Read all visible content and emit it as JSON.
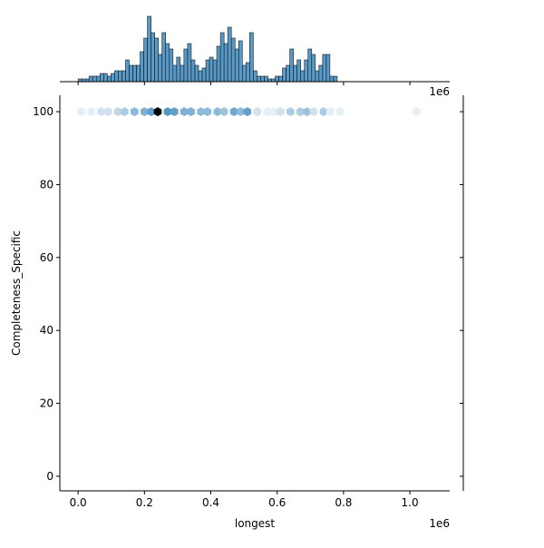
{
  "chart_data": {
    "type": "hexbin",
    "title": "",
    "xlabel": "longest",
    "ylabel": "Completeness_Specific",
    "x_offset_text": "1e6",
    "y_offset_text": "1e6",
    "xlim": [
      -0.055,
      1.12
    ],
    "ylim": [
      -4,
      104.5
    ],
    "x_ticks": [
      0.0,
      0.2,
      0.4,
      0.6,
      0.8,
      1.0
    ],
    "x_tick_labels": [
      "0.0",
      "0.2",
      "0.4",
      "0.6",
      "0.8",
      "1.0"
    ],
    "y_ticks": [
      0,
      20,
      40,
      60,
      80,
      100
    ],
    "y_tick_labels": [
      "0",
      "20",
      "40",
      "60",
      "80",
      "100"
    ],
    "grid": false,
    "hex_color": "#1f77b4",
    "hexbins": {
      "y": 100,
      "x": [
        0.01,
        0.04,
        0.07,
        0.09,
        0.12,
        0.14,
        0.17,
        0.2,
        0.22,
        0.24,
        0.27,
        0.29,
        0.32,
        0.34,
        0.37,
        0.39,
        0.42,
        0.44,
        0.47,
        0.49,
        0.51,
        0.54,
        0.57,
        0.59,
        0.61,
        0.64,
        0.67,
        0.69,
        0.71,
        0.74,
        0.76,
        0.79,
        1.02
      ],
      "counts": [
        1,
        1,
        2,
        2,
        3,
        4,
        6,
        7,
        9,
        14,
        10,
        9,
        7,
        7,
        6,
        6,
        6,
        5,
        8,
        6,
        9,
        2,
        1,
        1,
        2,
        4,
        4,
        5,
        2,
        4,
        1,
        1,
        1
      ]
    },
    "marginal_x": {
      "type": "histogram",
      "bin_start": 0.0,
      "bin_width": 0.011,
      "counts": [
        0.5,
        0.5,
        0.5,
        1,
        1,
        1,
        1.5,
        1.5,
        1,
        1.5,
        2,
        2,
        2,
        4,
        3,
        3,
        3,
        5.5,
        8,
        12,
        9,
        8,
        5,
        9,
        7,
        6,
        3,
        4.5,
        3,
        6,
        7,
        4,
        3,
        2,
        2.5,
        4,
        4.5,
        4,
        6.5,
        9,
        7,
        10,
        8,
        6,
        7.5,
        3,
        3.5,
        9,
        2,
        1,
        1,
        1,
        0.5,
        0.5,
        1,
        1,
        2.5,
        3,
        6,
        3,
        4,
        2,
        4,
        6,
        5,
        2,
        3,
        5,
        5,
        1,
        1
      ]
    },
    "marginal_y": {
      "type": "histogram",
      "note": "all mass at y = 100"
    }
  }
}
